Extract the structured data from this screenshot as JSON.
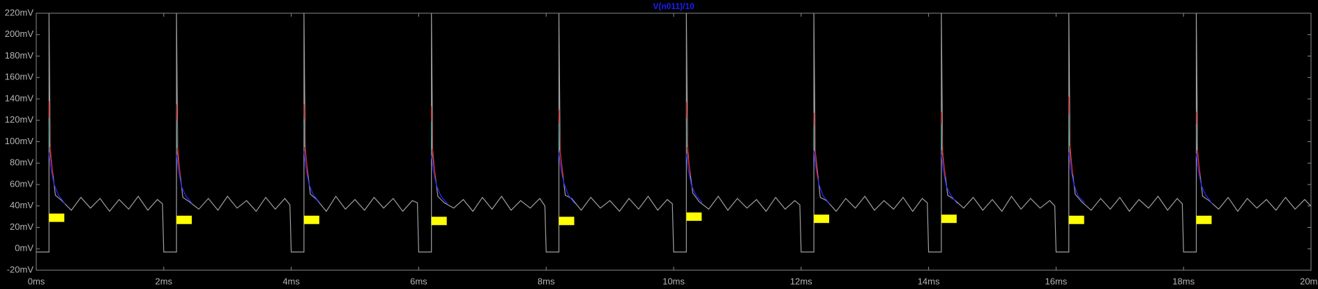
{
  "chart_data": {
    "type": "line",
    "title": "V(n011)/10",
    "xlim": [
      0,
      20
    ],
    "xticks": [
      {
        "value": 0,
        "label": "0ms"
      },
      {
        "value": 2,
        "label": "2ms"
      },
      {
        "value": 4,
        "label": "4ms"
      },
      {
        "value": 6,
        "label": "6ms"
      },
      {
        "value": 8,
        "label": "8ms"
      },
      {
        "value": 10,
        "label": "10ms"
      },
      {
        "value": 12,
        "label": "12ms"
      },
      {
        "value": 14,
        "label": "14ms"
      },
      {
        "value": 16,
        "label": "16ms"
      },
      {
        "value": 18,
        "label": "18ms"
      },
      {
        "value": 20,
        "label": "20ms"
      }
    ],
    "ylim": [
      -20,
      220
    ],
    "yticks": [
      {
        "value": -20,
        "label": "-20mV"
      },
      {
        "value": 0,
        "label": "0mV"
      },
      {
        "value": 20,
        "label": "20mV"
      },
      {
        "value": 40,
        "label": "40mV"
      },
      {
        "value": 60,
        "label": "60mV"
      },
      {
        "value": 80,
        "label": "80mV"
      },
      {
        "value": 100,
        "label": "100mV"
      },
      {
        "value": 120,
        "label": "120mV"
      },
      {
        "value": 140,
        "label": "140mV"
      },
      {
        "value": 160,
        "label": "160mV"
      },
      {
        "value": 180,
        "label": "180mV"
      },
      {
        "value": 200,
        "label": "200mV"
      },
      {
        "value": 220,
        "label": "220mV"
      }
    ],
    "series": [
      {
        "name": "V(n011)/10",
        "color": "#a0a0a0",
        "x": [
          0,
          0.2,
          0.2,
          0.22,
          0.3,
          0.4,
          0.55,
          0.7,
          0.85,
          1,
          1.15,
          1.3,
          1.45,
          1.6,
          1.75,
          1.9,
          1.98,
          2,
          2.2,
          2.2,
          2.22,
          2.3,
          2.4,
          2.55,
          2.7,
          2.85,
          3,
          3.15,
          3.3,
          3.45,
          3.6,
          3.75,
          3.9,
          3.98,
          4,
          4.2,
          4.2,
          4.22,
          4.3,
          4.4,
          4.55,
          4.7,
          4.85,
          5,
          5.15,
          5.3,
          5.45,
          5.6,
          5.75,
          5.9,
          5.98,
          6,
          6.2,
          6.2,
          6.22,
          6.3,
          6.4,
          6.55,
          6.7,
          6.85,
          7,
          7.15,
          7.3,
          7.45,
          7.6,
          7.75,
          7.9,
          7.98,
          8,
          8.2,
          8.2,
          8.22,
          8.3,
          8.4,
          8.55,
          8.7,
          8.85,
          9,
          9.15,
          9.3,
          9.45,
          9.6,
          9.75,
          9.9,
          9.98,
          10,
          10.2,
          10.2,
          10.22,
          10.3,
          10.4,
          10.55,
          10.7,
          10.85,
          11,
          11.15,
          11.3,
          11.45,
          11.6,
          11.75,
          11.9,
          11.98,
          12,
          12.2,
          12.2,
          12.22,
          12.3,
          12.4,
          12.55,
          12.7,
          12.85,
          13,
          13.15,
          13.3,
          13.45,
          13.6,
          13.75,
          13.9,
          13.98,
          14,
          14.2,
          14.2,
          14.22,
          14.3,
          14.4,
          14.55,
          14.7,
          14.85,
          15,
          15.15,
          15.3,
          15.45,
          15.6,
          15.75,
          15.9,
          15.98,
          16,
          16.2,
          16.2,
          16.22,
          16.3,
          16.4,
          16.55,
          16.7,
          16.85,
          17,
          17.15,
          17.3,
          17.45,
          17.6,
          17.75,
          17.9,
          17.98,
          18,
          18.2,
          18.2,
          18.22,
          18.3,
          18.4,
          18.55,
          18.7,
          18.85,
          19,
          19.15,
          19.3,
          19.45,
          19.6,
          19.75,
          19.9,
          19.98,
          20
        ],
        "values": [
          -3,
          -3,
          220,
          90,
          50,
          45,
          36,
          48,
          38,
          47,
          35,
          46,
          37,
          49,
          36,
          46,
          42,
          -3,
          -3,
          220,
          88,
          48,
          44,
          37,
          47,
          36,
          49,
          38,
          45,
          35,
          48,
          37,
          47,
          41,
          -3,
          -3,
          220,
          91,
          51,
          46,
          35,
          49,
          37,
          46,
          36,
          48,
          38,
          47,
          35,
          45,
          43,
          -3,
          -3,
          220,
          87,
          49,
          43,
          38,
          46,
          35,
          48,
          37,
          49,
          36,
          45,
          38,
          47,
          40,
          -3,
          -3,
          220,
          90,
          50,
          47,
          36,
          48,
          38,
          45,
          35,
          47,
          37,
          49,
          36,
          46,
          42,
          -3,
          -3,
          220,
          89,
          52,
          44,
          37,
          49,
          36,
          47,
          38,
          46,
          35,
          48,
          37,
          45,
          41,
          -3,
          -3,
          220,
          92,
          48,
          45,
          35,
          47,
          38,
          49,
          36,
          45,
          37,
          48,
          35,
          47,
          43,
          -3,
          -3,
          220,
          88,
          50,
          46,
          38,
          48,
          36,
          46,
          35,
          49,
          37,
          47,
          38,
          45,
          40,
          -3,
          -3,
          220,
          90,
          51,
          44,
          36,
          47,
          37,
          48,
          35,
          46,
          38,
          49,
          36,
          47,
          42,
          -3,
          -3,
          220,
          89,
          49,
          45,
          37,
          48,
          35,
          47,
          38,
          46,
          36,
          48,
          37,
          46,
          41,
          40
        ]
      },
      {
        "color": "#2a2aff",
        "x": [
          0.2,
          0.23,
          0.28,
          0.35,
          0.45,
          0.5,
          2.2,
          2.23,
          2.28,
          2.35,
          2.45,
          2.5,
          4.2,
          4.23,
          4.28,
          4.35,
          4.45,
          4.5,
          6.2,
          6.23,
          6.28,
          6.35,
          6.45,
          6.5,
          8.2,
          8.23,
          8.28,
          8.35,
          8.45,
          8.5,
          10.2,
          10.23,
          10.28,
          10.35,
          10.45,
          10.5,
          12.2,
          12.23,
          12.28,
          12.35,
          12.45,
          12.5,
          14.2,
          14.23,
          14.28,
          14.35,
          14.45,
          14.5,
          16.2,
          16.23,
          16.28,
          16.35,
          16.45,
          16.5,
          18.2,
          18.23,
          18.28,
          18.35,
          18.45
        ],
        "values": [
          90,
          75,
          60,
          50,
          42,
          null,
          88,
          74,
          58,
          49,
          42,
          null,
          91,
          76,
          60,
          50,
          43,
          null,
          87,
          73,
          59,
          49,
          42,
          null,
          90,
          75,
          61,
          50,
          42,
          null,
          89,
          74,
          59,
          50,
          43,
          null,
          92,
          76,
          60,
          49,
          42,
          null,
          88,
          74,
          58,
          50,
          42,
          null,
          90,
          75,
          60,
          49,
          43,
          null,
          89,
          74,
          59,
          50,
          42
        ]
      },
      {
        "color": "#e02020",
        "x": [
          0.2,
          0.22,
          0.26,
          0.3,
          2.2,
          2.22,
          2.26,
          2.3,
          4.2,
          4.22,
          4.26,
          4.3,
          6.2,
          6.22,
          6.26,
          6.3,
          8.2,
          8.22,
          8.26,
          8.3,
          10.2,
          10.22,
          10.26,
          10.3,
          12.2,
          12.22,
          12.26,
          12.3,
          14.2,
          14.22,
          14.26,
          14.3,
          16.2,
          16.22,
          16.26,
          16.3,
          18.2,
          18.22,
          18.26
        ],
        "values": [
          138,
          95,
          68,
          null,
          135,
          94,
          67,
          null,
          135,
          95,
          68,
          null,
          133,
          93,
          66,
          null,
          130,
          92,
          67,
          null,
          137,
          95,
          68,
          null,
          127,
          91,
          66,
          null,
          128,
          92,
          67,
          null,
          142,
          96,
          69,
          null,
          128,
          92,
          67
        ]
      },
      {
        "color": "#30c0c0",
        "x": [
          0.2,
          0.21,
          0.3,
          2.2,
          2.21,
          2.3,
          4.2,
          4.21,
          4.3,
          6.2,
          6.21,
          6.3,
          8.2,
          8.21,
          8.3,
          10.2,
          10.21,
          10.3,
          12.2,
          12.21,
          12.3,
          14.2,
          14.21,
          14.3,
          16.2,
          16.21,
          16.3,
          18.2,
          18.21
        ],
        "values": [
          122,
          95,
          null,
          120,
          94,
          null,
          121,
          95,
          null,
          119,
          93,
          null,
          117,
          92,
          null,
          122,
          95,
          null,
          115,
          91,
          null,
          116,
          92,
          null,
          125,
          96,
          null,
          116,
          92
        ]
      }
    ],
    "markers": {
      "color": "#ffff00",
      "x": [
        0.32,
        2.32,
        4.32,
        6.32,
        8.32,
        10.32,
        12.32,
        14.32,
        16.32,
        18.32
      ],
      "values": [
        29,
        27,
        27,
        26,
        26,
        30,
        28,
        28,
        27,
        27
      ]
    }
  }
}
